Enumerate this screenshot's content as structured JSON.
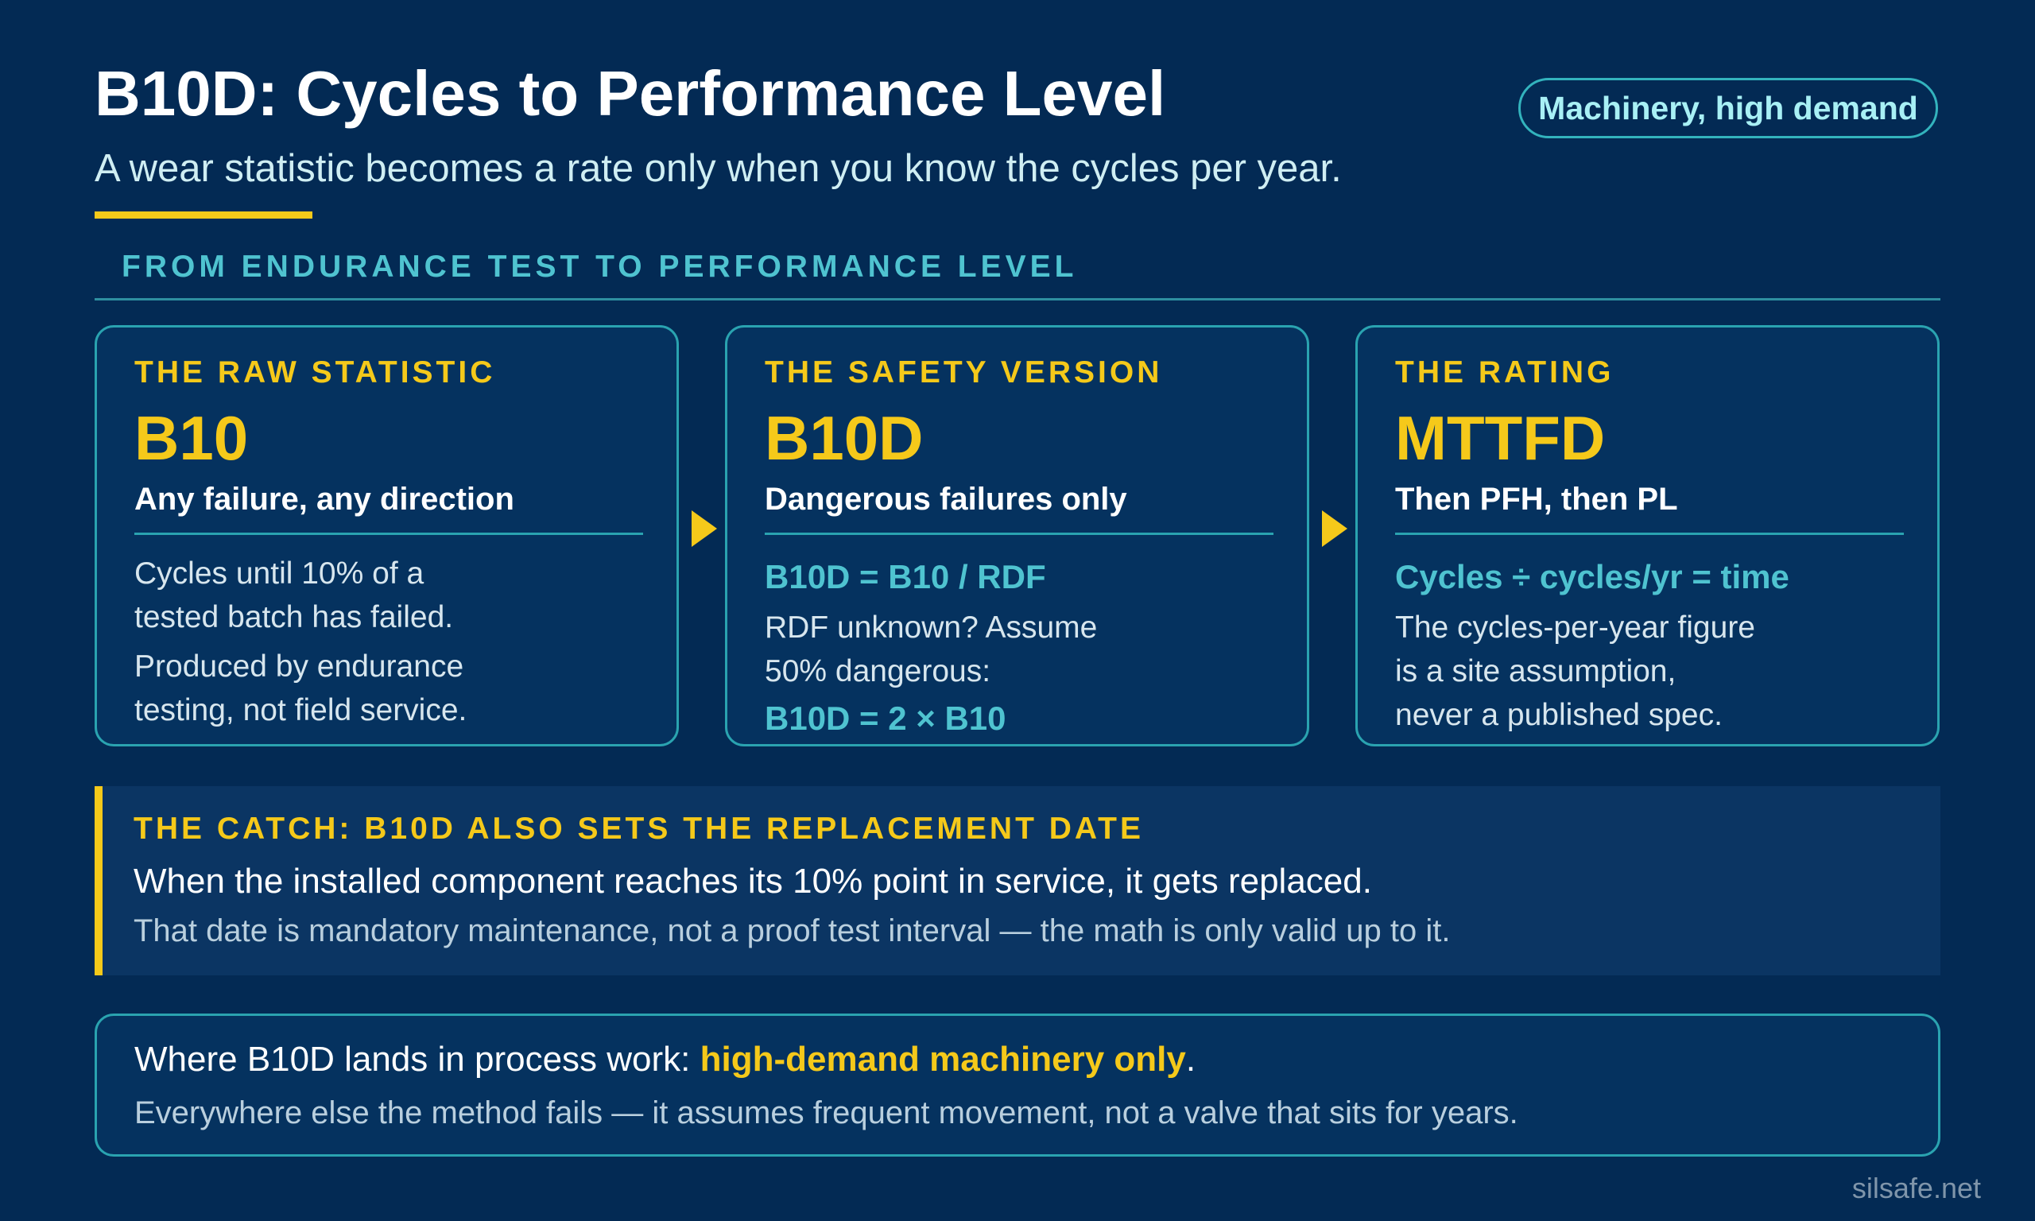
{
  "header": {
    "title": "B10D: Cycles to Performance Level",
    "badge": "Machinery, high demand",
    "subtitle": "A wear statistic becomes a rate only when you know the cycles per year."
  },
  "section": {
    "heading": "FROM ENDURANCE TEST TO PERFORMANCE LEVEL"
  },
  "cards": [
    {
      "eyebrow": "THE RAW STATISTIC",
      "big": "B10",
      "tagline": "Any failure, any direction",
      "body": [
        "Cycles until 10% of a",
        "tested batch has failed.",
        "Produced by endurance",
        "testing, not field service."
      ]
    },
    {
      "eyebrow": "THE SAFETY VERSION",
      "big": "B10D",
      "tagline": "Dangerous failures only",
      "formula": "B10D = B10 / RDF",
      "body": [
        "RDF unknown? Assume",
        "50% dangerous:"
      ],
      "formula2": "B10D = 2 × B10"
    },
    {
      "eyebrow": "THE RATING",
      "big": "MTTFD",
      "tagline": "Then PFH, then PL",
      "formula": "Cycles ÷ cycles/yr = time",
      "body": [
        "The cycles-per-year figure",
        "is a site assumption,",
        "never a published spec."
      ]
    }
  ],
  "catch": {
    "heading": "THE CATCH: B10D ALSO SETS THE REPLACEMENT DATE",
    "line1": "When the installed component reaches its 10% point in service, it gets replaced.",
    "line2": "That date is mandatory maintenance, not a proof test interval — the math is only valid up to it."
  },
  "bottom": {
    "line1_prefix": "Where B10D lands in process work: ",
    "line1_highlight": "high-demand machinery only",
    "line1_suffix": ".",
    "line2": "Everywhere else the method fails — it assumes frequent movement, not a valve that sits for years."
  },
  "footer": {
    "site": "silsafe.net"
  },
  "colors": {
    "background": "#032a54",
    "accent_yellow": "#f5c91a",
    "accent_teal": "#4fc3d0",
    "border_teal": "#2aa3b0"
  }
}
